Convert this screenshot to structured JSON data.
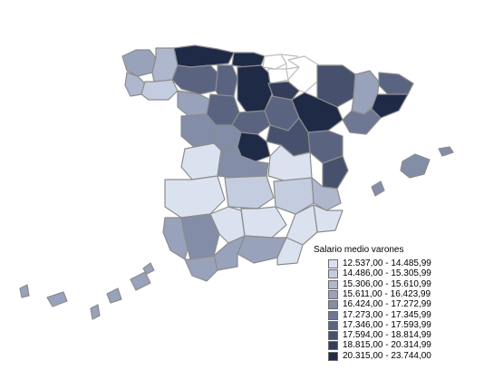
{
  "legend": {
    "title": "Salario medio varones",
    "classes": [
      {
        "label": "12.537,00 - 14.485,99",
        "color": "#dbe2ef"
      },
      {
        "label": "14.486,00 - 15.305,99",
        "color": "#c4cce0"
      },
      {
        "label": "15.306,00 - 15.610,99",
        "color": "#aeb7cd"
      },
      {
        "label": "15.611,00 - 16.423,99",
        "color": "#98a2bb"
      },
      {
        "label": "16.424,00 - 17.272,99",
        "color": "#838da8"
      },
      {
        "label": "17.273,00 - 17.345,99",
        "color": "#6e7894"
      },
      {
        "label": "17.346,00 - 17.593,99",
        "color": "#5a6481"
      },
      {
        "label": "17.594,00 - 18.814,99",
        "color": "#47516d"
      },
      {
        "label": "18.815,00 - 20.314,99",
        "color": "#343e5b"
      },
      {
        "label": "20.315,00 - 23.744,00",
        "color": "#1f2a47"
      }
    ]
  },
  "colors": {
    "no_data": "#ffffff",
    "border": "#8c8c8c",
    "background": "#ffffff"
  }
}
